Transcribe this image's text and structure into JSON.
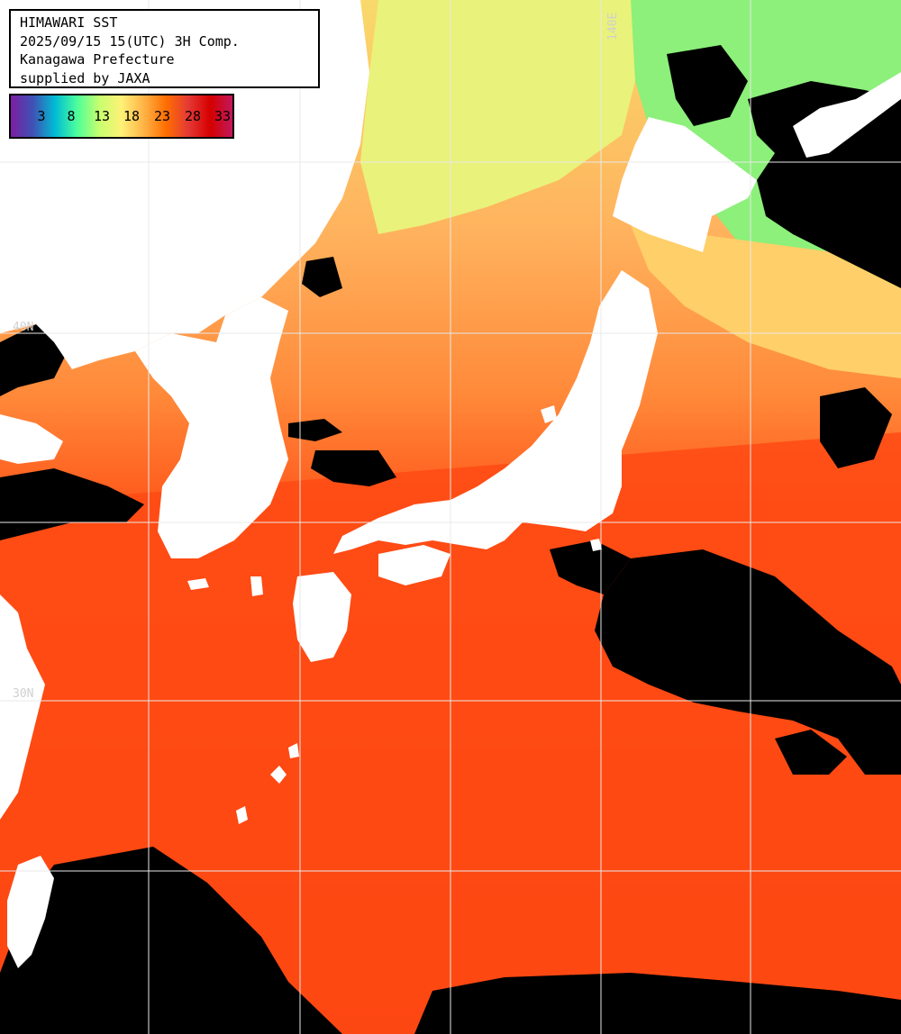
{
  "header": {
    "lines": [
      "HIMAWARI SST",
      "2025/09/15 15(UTC) 3H Comp.",
      "Kanagawa Prefecture",
      "supplied by JAXA"
    ]
  },
  "legend": {
    "ticks": [
      "3",
      "8",
      "13",
      "18",
      "23",
      "28",
      "33"
    ],
    "gradient": [
      "#7b1fa2",
      "#3f51b5",
      "#00bcd4",
      "#4dff9a",
      "#c8ff6e",
      "#fff176",
      "#ffb347",
      "#ff6f00",
      "#e53935",
      "#d50000",
      "#c2185b"
    ]
  },
  "grid_labels": {
    "lat": [
      "40N",
      "30N"
    ],
    "lon": [
      "140E"
    ]
  },
  "colors": {
    "land": "#ffffff",
    "cloud": "#000000",
    "grid": "#e8e8e8",
    "sst_cold": "#7cf27c",
    "sst_cool": "#f9e770",
    "sst_mild": "#ffb766",
    "sst_warm": "#ff7b2a",
    "sst_hot": "#ff3e12",
    "sst_hotter": "#ef2a08"
  }
}
